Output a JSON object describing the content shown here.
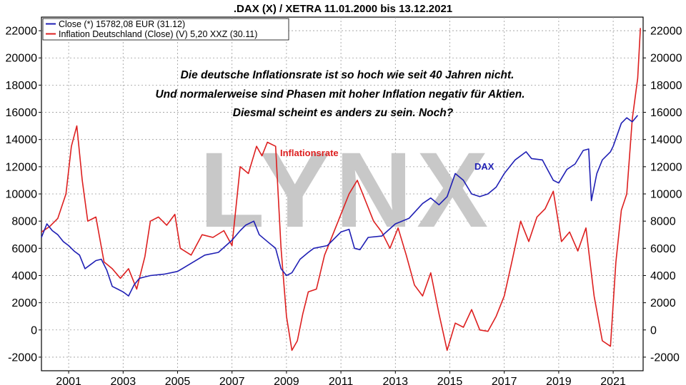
{
  "chart_data": {
    "type": "line",
    "title": ".DAX (X) / XETRA 11.01.2000 bis 13.12.2021",
    "x_ticks": [
      "2001",
      "2003",
      "2005",
      "2007",
      "2009",
      "2011",
      "2013",
      "2015",
      "2017",
      "2019",
      "2021"
    ],
    "y_ticks": [
      22000,
      20000,
      18000,
      16000,
      14000,
      12000,
      10000,
      8000,
      6000,
      4000,
      2000,
      0,
      -2000
    ],
    "ylim": [
      -3000,
      23000
    ],
    "xlim": [
      2000.0,
      2022.1
    ],
    "grid": true,
    "legend_position": "top-left",
    "legend": [
      "Close (*) 15782,08 EUR (31.12)",
      "Inflation Deutschland (Close) (V) 5,20 XXZ (30.11)"
    ],
    "annotations": [
      "Die deutsche Inflationsrate ist so hoch wie seit 40 Jahren nicht.",
      "Und normalerweise sind Phasen mit hoher Inflation negativ für Aktien.",
      "Diesmal scheint es anders zu sein. Noch?"
    ],
    "series_labels": {
      "dax": "DAX",
      "inflation": "Inflationsrate"
    },
    "watermark": "LYNX",
    "colors": {
      "dax": "#1f1fb4",
      "inflation": "#dd1f1f",
      "watermark": "#c8c8c8"
    },
    "series": [
      {
        "name": "DAX",
        "x": [
          2000.0,
          2000.2,
          2000.4,
          2000.6,
          2000.8,
          2001.0,
          2001.2,
          2001.4,
          2001.6,
          2001.8,
          2002.0,
          2002.2,
          2002.4,
          2002.6,
          2002.8,
          2003.0,
          2003.2,
          2003.4,
          2003.6,
          2003.8,
          2004.0,
          2004.5,
          2005.0,
          2005.5,
          2006.0,
          2006.5,
          2007.0,
          2007.3,
          2007.5,
          2007.8,
          2008.0,
          2008.3,
          2008.6,
          2008.8,
          2009.0,
          2009.2,
          2009.5,
          2009.8,
          2010.0,
          2010.5,
          2011.0,
          2011.3,
          2011.5,
          2011.7,
          2012.0,
          2012.5,
          2013.0,
          2013.5,
          2014.0,
          2014.3,
          2014.6,
          2014.9,
          2015.2,
          2015.5,
          2015.8,
          2016.1,
          2016.4,
          2016.7,
          2017.0,
          2017.4,
          2017.8,
          2018.0,
          2018.4,
          2018.8,
          2019.0,
          2019.3,
          2019.6,
          2019.9,
          2020.1,
          2020.2,
          2020.4,
          2020.6,
          2020.9,
          2021.0,
          2021.3,
          2021.5,
          2021.7,
          2021.9
        ],
        "values": [
          6800,
          7800,
          7300,
          7000,
          6500,
          6200,
          5800,
          5500,
          4500,
          4800,
          5100,
          5200,
          4400,
          3200,
          3000,
          2800,
          2500,
          3300,
          3800,
          3900,
          4000,
          4100,
          4300,
          4900,
          5500,
          5700,
          6600,
          7300,
          7700,
          8000,
          7000,
          6500,
          6000,
          4500,
          4000,
          4200,
          5200,
          5700,
          6000,
          6200,
          7200,
          7400,
          6000,
          5900,
          6800,
          6900,
          7800,
          8200,
          9300,
          9700,
          9200,
          9800,
          11500,
          11000,
          10000,
          9800,
          10000,
          10500,
          11500,
          12500,
          13100,
          12600,
          12500,
          11000,
          10800,
          11800,
          12200,
          13200,
          13300,
          9500,
          11500,
          12500,
          13100,
          13500,
          15200,
          15600,
          15300,
          15782
        ]
      },
      {
        "name": "Inflationsrate",
        "x": [
          2000.0,
          2000.3,
          2000.6,
          2000.9,
          2001.1,
          2001.3,
          2001.5,
          2001.7,
          2002.0,
          2002.3,
          2002.6,
          2002.9,
          2003.2,
          2003.5,
          2003.8,
          2004.0,
          2004.3,
          2004.6,
          2004.9,
          2005.1,
          2005.5,
          2005.9,
          2006.3,
          2006.7,
          2007.0,
          2007.3,
          2007.6,
          2007.9,
          2008.1,
          2008.3,
          2008.6,
          2008.8,
          2009.0,
          2009.2,
          2009.4,
          2009.6,
          2009.8,
          2010.1,
          2010.4,
          2010.7,
          2011.0,
          2011.3,
          2011.6,
          2011.9,
          2012.2,
          2012.5,
          2012.8,
          2013.1,
          2013.4,
          2013.7,
          2014.0,
          2014.3,
          2014.6,
          2014.9,
          2015.2,
          2015.5,
          2015.8,
          2016.1,
          2016.4,
          2016.7,
          2017.0,
          2017.3,
          2017.6,
          2017.9,
          2018.2,
          2018.5,
          2018.8,
          2019.1,
          2019.4,
          2019.7,
          2020.0,
          2020.3,
          2020.6,
          2020.9,
          2021.1,
          2021.3,
          2021.5,
          2021.7,
          2021.9,
          2022.0
        ],
        "values": [
          7200,
          7600,
          8200,
          10000,
          13500,
          15000,
          11000,
          8000,
          8300,
          5000,
          4500,
          3800,
          4500,
          3000,
          5400,
          8000,
          8300,
          7700,
          8500,
          6000,
          5500,
          7000,
          6800,
          7300,
          6200,
          12000,
          11500,
          13500,
          12800,
          13800,
          13500,
          6000,
          1000,
          -1500,
          -800,
          1200,
          2800,
          3000,
          5500,
          7000,
          8500,
          10000,
          11000,
          9500,
          8000,
          7200,
          6000,
          7500,
          5500,
          3300,
          2500,
          4200,
          1200,
          -1500,
          500,
          200,
          1500,
          0,
          -100,
          1000,
          2500,
          5200,
          8000,
          6500,
          8300,
          8900,
          10200,
          6500,
          7200,
          5800,
          7500,
          2500,
          -800,
          -1200,
          5000,
          8800,
          10000,
          15500,
          18500,
          22200
        ]
      }
    ]
  }
}
